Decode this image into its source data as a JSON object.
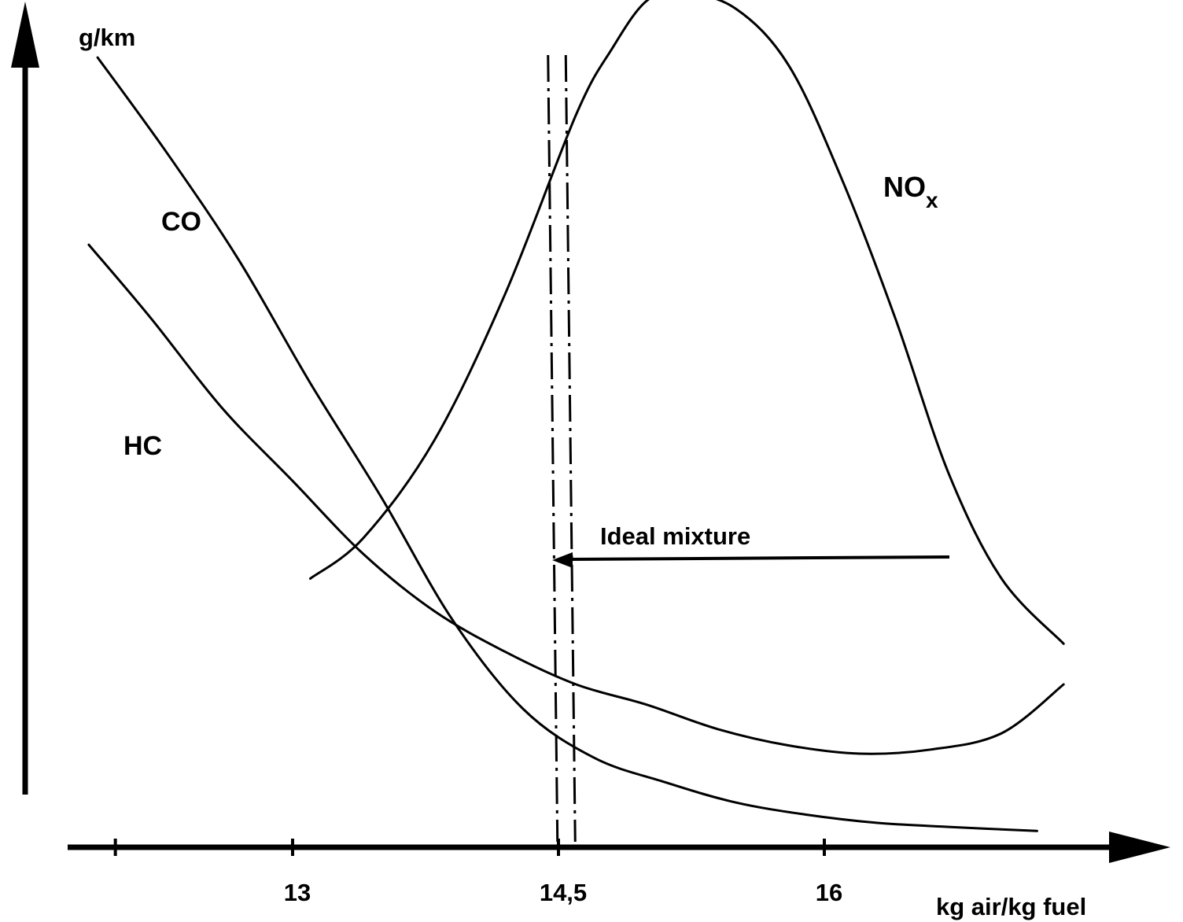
{
  "chart_data": {
    "type": "line",
    "title": "",
    "ylabel": "g/km",
    "xlabel": "kg air/kg fuel",
    "ylim": [
      0,
      10
    ],
    "yticks": [],
    "grid": false,
    "legend": "inline curve labels",
    "x_ticks": [
      {
        "value": 12,
        "label": ""
      },
      {
        "value": 13,
        "label": "13"
      },
      {
        "value": 14.5,
        "label": "14,5"
      },
      {
        "value": 16,
        "label": "16"
      }
    ],
    "series": [
      {
        "name": "CO",
        "x": [
          11.9,
          12.3,
          12.7,
          13.1,
          13.5,
          13.9,
          14.3,
          14.7,
          15.1,
          15.5,
          15.9,
          16.3,
          16.7,
          17.2
        ],
        "values": [
          9.7,
          8.5,
          7.2,
          5.7,
          4.3,
          2.8,
          1.7,
          1.1,
          0.8,
          0.55,
          0.4,
          0.3,
          0.25,
          0.2
        ]
      },
      {
        "name": "HC",
        "x": [
          11.85,
          12.2,
          12.6,
          13.0,
          13.4,
          13.8,
          14.2,
          14.6,
          15.0,
          15.4,
          15.8,
          16.2,
          16.6,
          17.0,
          17.35
        ],
        "values": [
          7.4,
          6.5,
          5.4,
          4.5,
          3.6,
          2.9,
          2.4,
          2.0,
          1.75,
          1.45,
          1.25,
          1.15,
          1.2,
          1.4,
          2.0
        ]
      },
      {
        "name": "NOx",
        "x": [
          13.1,
          13.4,
          13.8,
          14.2,
          14.6,
          14.8,
          15.0,
          15.2,
          15.5,
          15.8,
          16.1,
          16.4,
          16.7,
          17.0,
          17.35
        ],
        "values": [
          3.3,
          3.8,
          5.0,
          6.8,
          9.0,
          9.8,
          10.4,
          10.5,
          10.3,
          9.6,
          8.2,
          6.5,
          4.6,
          3.3,
          2.5
        ]
      }
    ],
    "reference_lines": [
      {
        "x": 14.45,
        "style": "dash-dot"
      },
      {
        "x": 14.55,
        "style": "dash-dot"
      }
    ],
    "annotations": [
      {
        "text": "Ideal mixture",
        "points_to_x": 14.5
      }
    ]
  },
  "labels": {
    "y_axis": "g/km",
    "x_axis": "kg air/kg fuel",
    "co": "CO",
    "hc": "HC",
    "nox_main": "NO",
    "nox_sub": "x",
    "ideal": "Ideal mixture"
  }
}
